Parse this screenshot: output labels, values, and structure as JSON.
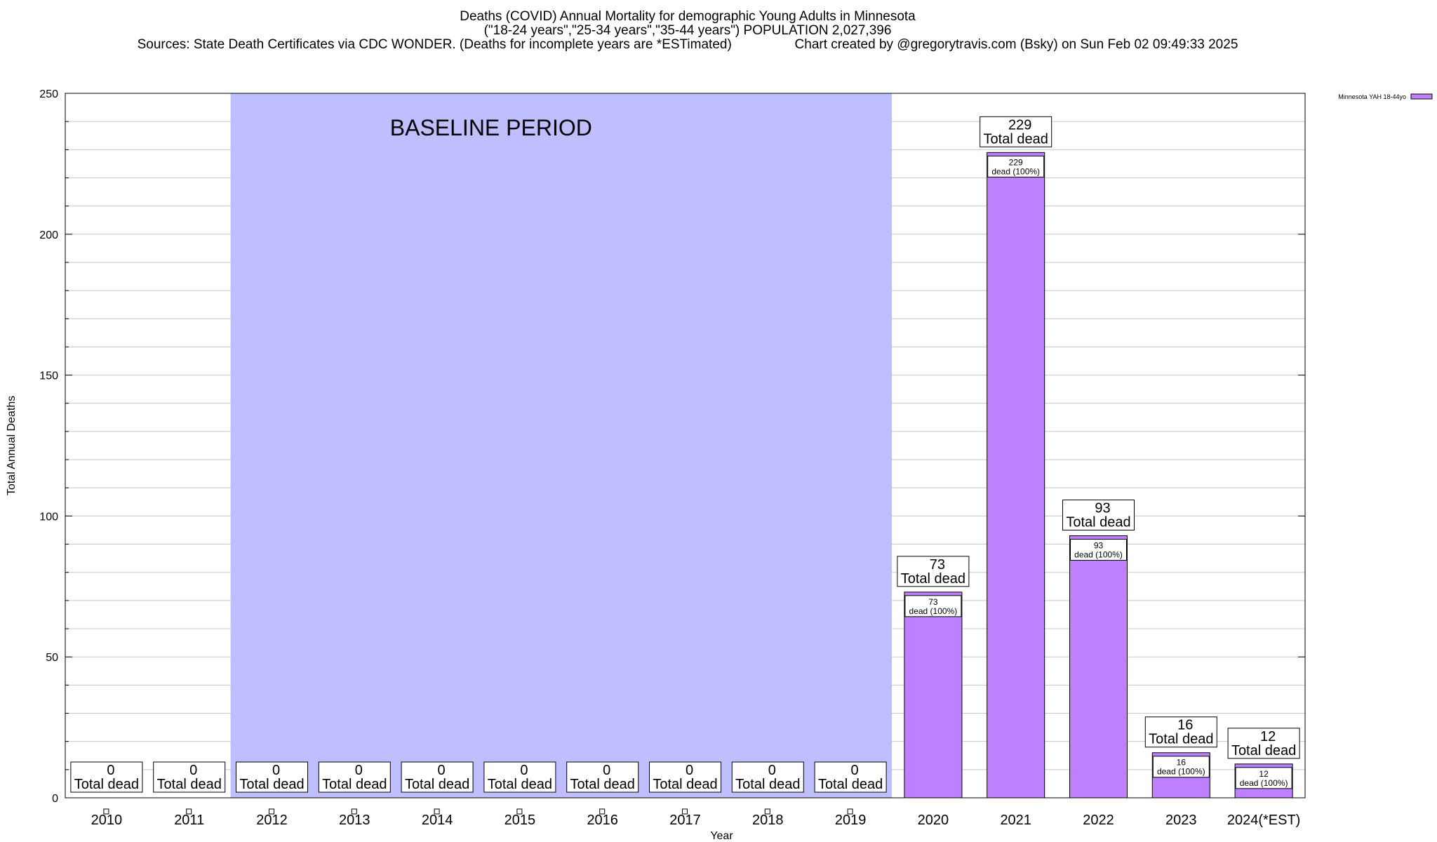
{
  "header": {
    "title": "Deaths (COVID) Annual Mortality for demographic Young Adults in Minnesota",
    "subtitle": "(\"18-24 years\",\"25-34 years\",\"35-44 years\") POPULATION 2,027,396",
    "sources": "Sources: State Death Certificates via CDC WONDER. (Deaths for incomplete years are *ESTimated)",
    "credit": "Chart created by @gregorytravis.com (Bsky) on Sun Feb 02 09:49:33 2025"
  },
  "chart_data": {
    "type": "bar",
    "title": "Deaths (COVID) Annual Mortality for demographic Young Adults in Minnesota",
    "xlabel": "Year",
    "ylabel": "Total Annual Deaths",
    "categories": [
      "2010",
      "2011",
      "2012",
      "2013",
      "2014",
      "2015",
      "2016",
      "2017",
      "2018",
      "2019",
      "2020",
      "2021",
      "2022",
      "2023",
      "2024(*EST)"
    ],
    "series": [
      {
        "name": "Minnesota YAH 18-44yo",
        "color": "#bf80ff",
        "values": [
          0,
          0,
          0,
          0,
          0,
          0,
          0,
          0,
          0,
          0,
          73,
          229,
          93,
          16,
          12
        ]
      }
    ],
    "ylim": [
      0,
      250
    ],
    "yticks": [
      0,
      50,
      100,
      150,
      200,
      250
    ],
    "grid": true,
    "legend_position": "top-right",
    "total_label": "Total dead",
    "inner_label_suffix": "dead (100%)",
    "baseline": {
      "label": "BASELINE PERIOD",
      "start": "2012",
      "end": "2019",
      "color": "#bfbfff"
    }
  }
}
